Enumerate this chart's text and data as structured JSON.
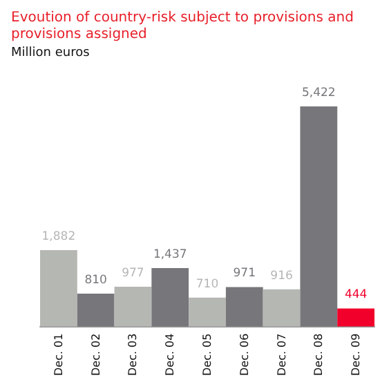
{
  "chart_data": {
    "type": "bar",
    "title": "Evoution of country-risk subject to provisions and provisions assigned",
    "subtitle": "Million euros",
    "categories": [
      "Dec. 01",
      "Dec. 02",
      "Dec. 03",
      "Dec. 04",
      "Dec. 05",
      "Dec. 06",
      "Dec. 07",
      "Dec. 08",
      "Dec. 09"
    ],
    "values": [
      1882,
      810,
      977,
      1437,
      710,
      971,
      916,
      5422,
      444
    ],
    "colors": [
      "#b5b7b3",
      "#77767b",
      "#b5b7b3",
      "#77767b",
      "#b5b7b3",
      "#77767b",
      "#b5b7b3",
      "#77767b",
      "#f0002a"
    ],
    "value_labels": [
      "1,882",
      "810",
      "977",
      "1,437",
      "710",
      "971",
      "916",
      "5,422",
      "444"
    ]
  }
}
